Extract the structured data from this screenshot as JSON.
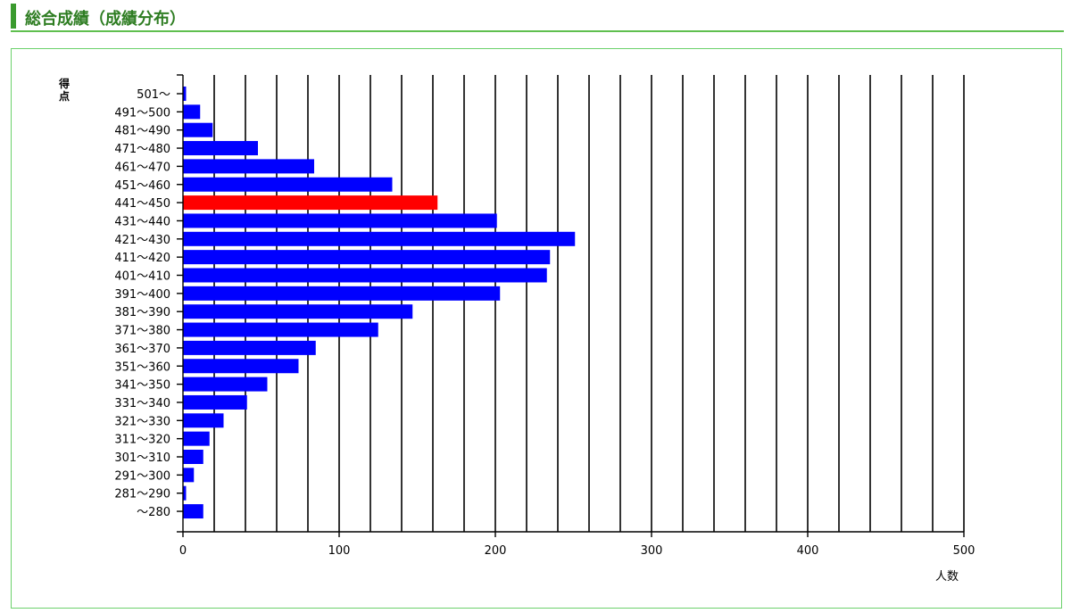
{
  "header": {
    "title": "総合成績（成績分布）"
  },
  "colors": {
    "accent": "#3a9a2e",
    "title_text": "#2e7d22",
    "frame_border": "#6cd16c",
    "bar": "#0000ff",
    "bar_highlight": "#ff0000",
    "grid": "#000000"
  },
  "chart_data": {
    "type": "bar",
    "orientation": "horizontal",
    "title": "",
    "ylabel": "得点",
    "xlabel": "人数",
    "xlim": [
      0,
      500
    ],
    "x_ticks": [
      0,
      100,
      200,
      300,
      400,
      500
    ],
    "grid": true,
    "highlight_category": "441〜450",
    "categories": [
      "501〜",
      "491〜500",
      "481〜490",
      "471〜480",
      "461〜470",
      "451〜460",
      "441〜450",
      "431〜440",
      "421〜430",
      "411〜420",
      "401〜410",
      "391〜400",
      "381〜390",
      "371〜380",
      "361〜370",
      "351〜360",
      "341〜350",
      "331〜340",
      "321〜330",
      "311〜320",
      "301〜310",
      "291〜300",
      "281〜290",
      "〜280"
    ],
    "values": [
      2,
      11,
      19,
      48,
      84,
      134,
      163,
      201,
      251,
      235,
      233,
      203,
      147,
      125,
      85,
      74,
      54,
      41,
      26,
      17,
      13,
      7,
      2,
      13
    ]
  }
}
